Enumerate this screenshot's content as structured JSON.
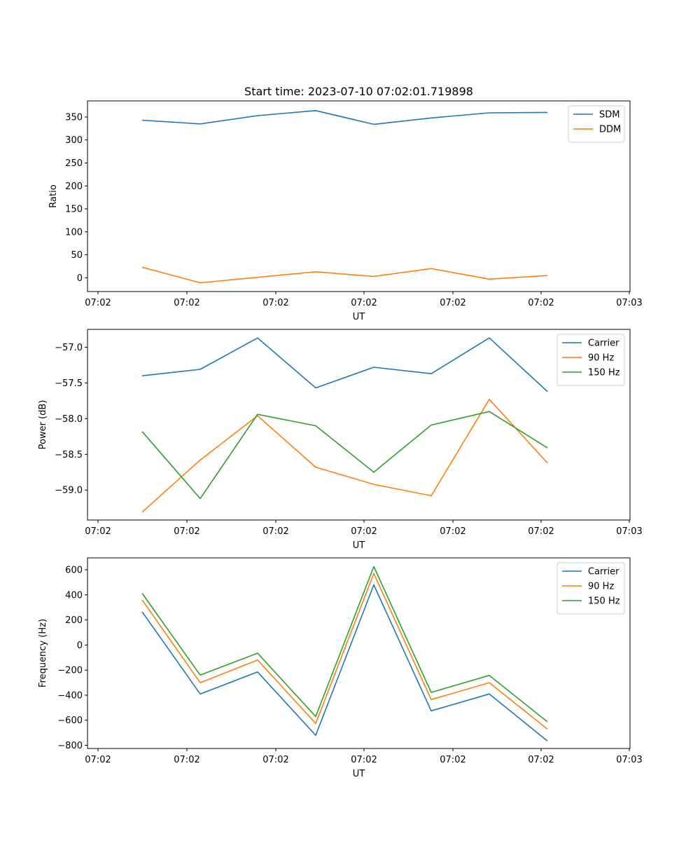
{
  "chart_data": [
    {
      "type": "line",
      "title": "Start time: 2023-07-10 07:02:01.719898",
      "xlabel": "UT",
      "ylabel": "Ratio",
      "x_tick_labels": [
        "07:02",
        "07:02",
        "07:02",
        "07:02",
        "07:02",
        "07:02",
        "07:03"
      ],
      "ylim": [
        -30,
        385
      ],
      "yticks": [
        0,
        50,
        100,
        150,
        200,
        250,
        300,
        350
      ],
      "ytick_labels": [
        "0",
        "50",
        "100",
        "150",
        "200",
        "250",
        "300",
        "350"
      ],
      "legend_position": "upper-right",
      "series": [
        {
          "name": "SDM",
          "color": "#1f77b4",
          "values": [
            343,
            335,
            353,
            364,
            334,
            348,
            359,
            360
          ]
        },
        {
          "name": "DDM",
          "color": "#ff7f0e",
          "values": [
            23,
            -11,
            1,
            13,
            3,
            20,
            -3,
            5
          ]
        }
      ]
    },
    {
      "type": "line",
      "title": "",
      "xlabel": "UT",
      "ylabel": "Power (dB)",
      "x_tick_labels": [
        "07:02",
        "07:02",
        "07:02",
        "07:02",
        "07:02",
        "07:02",
        "07:03"
      ],
      "ylim": [
        -59.42,
        -56.75
      ],
      "yticks": [
        -59.0,
        -58.5,
        -58.0,
        -57.5,
        -57.0
      ],
      "ytick_labels": [
        "−59.0",
        "−58.5",
        "−58.0",
        "−57.5",
        "−57.0"
      ],
      "legend_position": "upper-right",
      "series": [
        {
          "name": "Carrier",
          "color": "#1f77b4",
          "values": [
            -57.4,
            -57.31,
            -56.87,
            -57.57,
            -57.28,
            -57.37,
            -56.87,
            -57.62
          ]
        },
        {
          "name": "90 Hz",
          "color": "#ff7f0e",
          "values": [
            -59.31,
            -58.58,
            -57.96,
            -58.68,
            -58.92,
            -59.08,
            -57.73,
            -58.62
          ]
        },
        {
          "name": "150 Hz",
          "color": "#2ca02c",
          "values": [
            -58.18,
            -59.12,
            -57.94,
            -58.1,
            -58.75,
            -58.09,
            -57.9,
            -58.41
          ]
        }
      ]
    },
    {
      "type": "line",
      "title": "",
      "xlabel": "UT",
      "ylabel": "Frequency (Hz)",
      "x_tick_labels": [
        "07:02",
        "07:02",
        "07:02",
        "07:02",
        "07:02",
        "07:02",
        "07:03"
      ],
      "ylim": [
        -825,
        695
      ],
      "yticks": [
        -800,
        -600,
        -400,
        -200,
        0,
        200,
        400,
        600
      ],
      "ytick_labels": [
        "−800",
        "−600",
        "−400",
        "−200",
        "0",
        "200",
        "400",
        "600"
      ],
      "legend_position": "upper-right",
      "series": [
        {
          "name": "Carrier",
          "color": "#1f77b4",
          "values": [
            265,
            -390,
            -215,
            -720,
            480,
            -525,
            -390,
            -765
          ]
        },
        {
          "name": "90 Hz",
          "color": "#ff7f0e",
          "values": [
            360,
            -300,
            -120,
            -625,
            570,
            -435,
            -300,
            -670
          ]
        },
        {
          "name": "150 Hz",
          "color": "#2ca02c",
          "values": [
            413,
            -240,
            -65,
            -570,
            625,
            -378,
            -242,
            -612
          ]
        }
      ]
    }
  ]
}
